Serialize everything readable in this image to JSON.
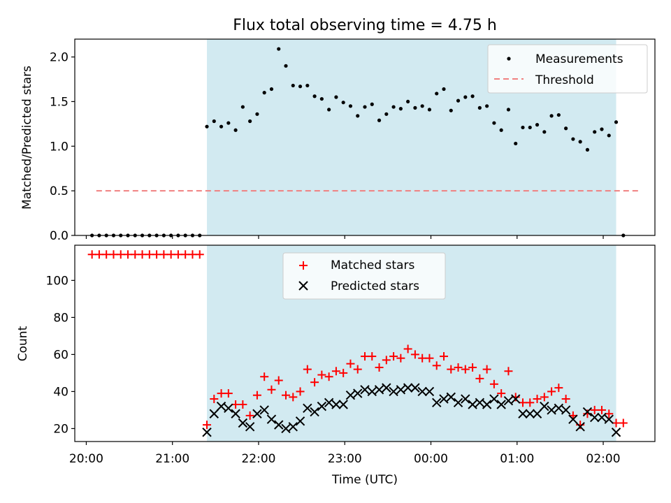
{
  "chart_data": [
    {
      "type": "scatter",
      "title": "Flux total observing time = 4.75 h",
      "xlabel": "",
      "ylabel": "Matched/Predicted stars",
      "xlim": [
        "19:52",
        "02:36"
      ],
      "ylim": [
        0,
        2.2
      ],
      "y_ticks": [
        "0.0",
        "0.5",
        "1.0",
        "1.5",
        "2.0"
      ],
      "shaded_interval": {
        "start": "21:24",
        "end": "02:09",
        "color": "#add8e6"
      },
      "legend_position": "top-right",
      "series": [
        {
          "name": "Measurements",
          "marker": "dot",
          "color": "#000000",
          "points": [
            [
              "20:04",
              0.0
            ],
            [
              "20:09",
              0.0
            ],
            [
              "20:14",
              0.0
            ],
            [
              "20:19",
              0.0
            ],
            [
              "20:24",
              0.0
            ],
            [
              "20:29",
              0.0
            ],
            [
              "20:34",
              0.0
            ],
            [
              "20:39",
              0.0
            ],
            [
              "20:44",
              0.0
            ],
            [
              "20:49",
              0.0
            ],
            [
              "20:54",
              0.0
            ],
            [
              "20:59",
              0.0
            ],
            [
              "21:04",
              0.0
            ],
            [
              "21:09",
              0.0
            ],
            [
              "21:14",
              0.0
            ],
            [
              "21:19",
              0.0
            ],
            [
              "21:24",
              1.22
            ],
            [
              "21:29",
              1.28
            ],
            [
              "21:34",
              1.22
            ],
            [
              "21:39",
              1.26
            ],
            [
              "21:44",
              1.18
            ],
            [
              "21:49",
              1.44
            ],
            [
              "21:54",
              1.28
            ],
            [
              "21:59",
              1.36
            ],
            [
              "22:04",
              1.6
            ],
            [
              "22:09",
              1.64
            ],
            [
              "22:14",
              2.09
            ],
            [
              "22:19",
              1.9
            ],
            [
              "22:24",
              1.68
            ],
            [
              "22:29",
              1.67
            ],
            [
              "22:34",
              1.68
            ],
            [
              "22:39",
              1.56
            ],
            [
              "22:44",
              1.53
            ],
            [
              "22:49",
              1.41
            ],
            [
              "22:54",
              1.55
            ],
            [
              "22:59",
              1.49
            ],
            [
              "23:04",
              1.45
            ],
            [
              "23:09",
              1.34
            ],
            [
              "23:14",
              1.44
            ],
            [
              "23:19",
              1.47
            ],
            [
              "23:24",
              1.29
            ],
            [
              "23:29",
              1.36
            ],
            [
              "23:34",
              1.44
            ],
            [
              "23:39",
              1.42
            ],
            [
              "23:44",
              1.5
            ],
            [
              "23:49",
              1.43
            ],
            [
              "23:54",
              1.45
            ],
            [
              "23:59",
              1.41
            ],
            [
              "00:04",
              1.59
            ],
            [
              "00:09",
              1.64
            ],
            [
              "00:14",
              1.4
            ],
            [
              "00:19",
              1.51
            ],
            [
              "00:24",
              1.55
            ],
            [
              "00:29",
              1.56
            ],
            [
              "00:34",
              1.43
            ],
            [
              "00:39",
              1.45
            ],
            [
              "00:44",
              1.26
            ],
            [
              "00:49",
              1.18
            ],
            [
              "00:54",
              1.41
            ],
            [
              "00:59",
              1.03
            ],
            [
              "01:04",
              1.21
            ],
            [
              "01:09",
              1.21
            ],
            [
              "01:14",
              1.24
            ],
            [
              "01:19",
              1.16
            ],
            [
              "01:24",
              1.34
            ],
            [
              "01:29",
              1.35
            ],
            [
              "01:34",
              1.2
            ],
            [
              "01:39",
              1.08
            ],
            [
              "01:44",
              1.05
            ],
            [
              "01:49",
              0.96
            ],
            [
              "01:54",
              1.16
            ],
            [
              "01:59",
              1.19
            ],
            [
              "02:04",
              1.12
            ],
            [
              "02:09",
              1.27
            ],
            [
              "02:14",
              0.0
            ]
          ]
        },
        {
          "name": "Threshold",
          "marker": "dashed-line",
          "color": "#f08080",
          "points": [
            [
              "20:07",
              0.5
            ],
            [
              "02:25",
              0.5
            ]
          ]
        }
      ]
    },
    {
      "type": "scatter",
      "title": "",
      "xlabel": "Time (UTC)",
      "ylabel": "Count",
      "xlim": [
        "19:52",
        "02:36"
      ],
      "ylim": [
        13,
        119
      ],
      "x_ticks": [
        "20:00",
        "21:00",
        "22:00",
        "23:00",
        "00:00",
        "01:00",
        "02:00"
      ],
      "y_ticks": [
        "20",
        "40",
        "60",
        "80",
        "100"
      ],
      "shaded_interval": {
        "start": "21:24",
        "end": "02:09",
        "color": "#add8e6"
      },
      "legend_position": "top-center",
      "series": [
        {
          "name": "Matched stars",
          "marker": "plus",
          "color": "#ff0000",
          "points": [
            [
              "20:04",
              114
            ],
            [
              "20:09",
              114
            ],
            [
              "20:14",
              114
            ],
            [
              "20:19",
              114
            ],
            [
              "20:24",
              114
            ],
            [
              "20:29",
              114
            ],
            [
              "20:34",
              114
            ],
            [
              "20:39",
              114
            ],
            [
              "20:44",
              114
            ],
            [
              "20:49",
              114
            ],
            [
              "20:54",
              114
            ],
            [
              "20:59",
              114
            ],
            [
              "21:04",
              114
            ],
            [
              "21:09",
              114
            ],
            [
              "21:14",
              114
            ],
            [
              "21:19",
              114
            ],
            [
              "21:24",
              22
            ],
            [
              "21:29",
              36
            ],
            [
              "21:34",
              39
            ],
            [
              "21:39",
              39
            ],
            [
              "21:44",
              33
            ],
            [
              "21:49",
              33
            ],
            [
              "21:54",
              27
            ],
            [
              "21:59",
              38
            ],
            [
              "22:04",
              48
            ],
            [
              "22:09",
              41
            ],
            [
              "22:14",
              46
            ],
            [
              "22:19",
              38
            ],
            [
              "22:24",
              37
            ],
            [
              "22:29",
              40
            ],
            [
              "22:34",
              52
            ],
            [
              "22:39",
              45
            ],
            [
              "22:44",
              49
            ],
            [
              "22:49",
              48
            ],
            [
              "22:54",
              51
            ],
            [
              "22:59",
              50
            ],
            [
              "23:04",
              55
            ],
            [
              "23:09",
              52
            ],
            [
              "23:14",
              59
            ],
            [
              "23:19",
              59
            ],
            [
              "23:24",
              53
            ],
            [
              "23:29",
              57
            ],
            [
              "23:34",
              59
            ],
            [
              "23:39",
              58
            ],
            [
              "23:44",
              63
            ],
            [
              "23:49",
              60
            ],
            [
              "23:54",
              58
            ],
            [
              "23:59",
              58
            ],
            [
              "00:04",
              54
            ],
            [
              "00:09",
              59
            ],
            [
              "00:14",
              52
            ],
            [
              "00:19",
              53
            ],
            [
              "00:24",
              52
            ],
            [
              "00:29",
              53
            ],
            [
              "00:34",
              47
            ],
            [
              "00:39",
              52
            ],
            [
              "00:44",
              44
            ],
            [
              "00:49",
              39
            ],
            [
              "00:54",
              51
            ],
            [
              "00:59",
              37
            ],
            [
              "01:04",
              34
            ],
            [
              "01:09",
              34
            ],
            [
              "01:14",
              36
            ],
            [
              "01:19",
              37
            ],
            [
              "01:24",
              40
            ],
            [
              "01:29",
              42
            ],
            [
              "01:34",
              36
            ],
            [
              "01:39",
              27
            ],
            [
              "01:44",
              22
            ],
            [
              "01:49",
              28
            ],
            [
              "01:54",
              30
            ],
            [
              "01:59",
              30
            ],
            [
              "02:04",
              28
            ],
            [
              "02:09",
              23
            ],
            [
              "02:14",
              23
            ]
          ]
        },
        {
          "name": "Predicted stars",
          "marker": "x",
          "color": "#000000",
          "points": [
            [
              "21:24",
              18
            ],
            [
              "21:29",
              28
            ],
            [
              "21:34",
              32
            ],
            [
              "21:39",
              31
            ],
            [
              "21:44",
              28
            ],
            [
              "21:49",
              23
            ],
            [
              "21:54",
              21
            ],
            [
              "21:59",
              28
            ],
            [
              "22:04",
              30
            ],
            [
              "22:09",
              25
            ],
            [
              "22:14",
              22
            ],
            [
              "22:19",
              20
            ],
            [
              "22:24",
              21
            ],
            [
              "22:29",
              24
            ],
            [
              "22:34",
              31
            ],
            [
              "22:39",
              29
            ],
            [
              "22:44",
              32
            ],
            [
              "22:49",
              34
            ],
            [
              "22:54",
              33
            ],
            [
              "22:59",
              33
            ],
            [
              "23:04",
              38
            ],
            [
              "23:09",
              39
            ],
            [
              "23:14",
              41
            ],
            [
              "23:19",
              40
            ],
            [
              "23:24",
              41
            ],
            [
              "23:29",
              42
            ],
            [
              "23:34",
              40
            ],
            [
              "23:39",
              41
            ],
            [
              "23:44",
              42
            ],
            [
              "23:49",
              42
            ],
            [
              "23:54",
              40
            ],
            [
              "23:59",
              40
            ],
            [
              "00:04",
              34
            ],
            [
              "00:09",
              36
            ],
            [
              "00:14",
              37
            ],
            [
              "00:19",
              34
            ],
            [
              "00:24",
              36
            ],
            [
              "00:29",
              33
            ],
            [
              "00:34",
              34
            ],
            [
              "00:39",
              33
            ],
            [
              "00:44",
              36
            ],
            [
              "00:49",
              33
            ],
            [
              "00:54",
              35
            ],
            [
              "00:59",
              36
            ],
            [
              "01:04",
              28
            ],
            [
              "01:09",
              28
            ],
            [
              "01:14",
              28
            ],
            [
              "01:19",
              32
            ],
            [
              "01:24",
              30
            ],
            [
              "01:29",
              31
            ],
            [
              "01:34",
              30
            ],
            [
              "01:39",
              25
            ],
            [
              "01:44",
              21
            ],
            [
              "01:49",
              29
            ],
            [
              "01:54",
              26
            ],
            [
              "01:59",
              26
            ],
            [
              "02:04",
              25
            ],
            [
              "02:09",
              18
            ]
          ]
        }
      ]
    }
  ]
}
